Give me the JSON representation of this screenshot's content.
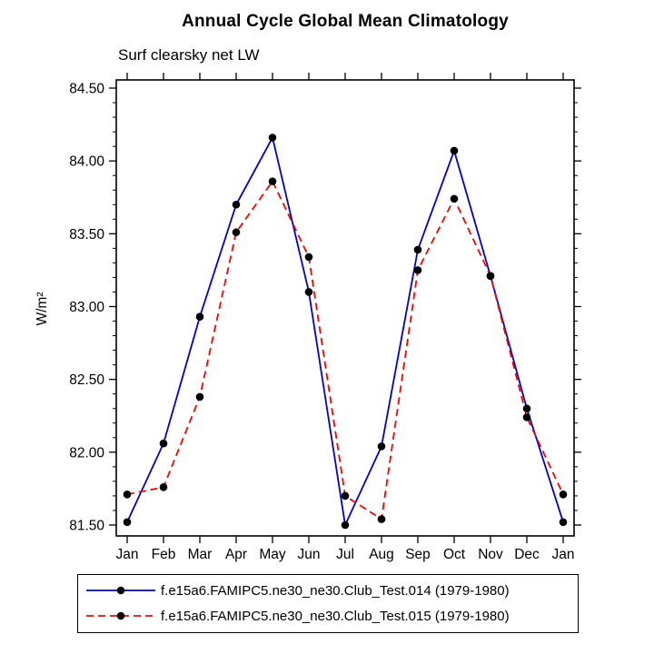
{
  "chart_data": {
    "type": "line",
    "title": "Annual Cycle Global Mean Climatology",
    "subtitle": "Surf clearsky net LW",
    "ylabel": "W/m²",
    "xlabel": "",
    "x": [
      "Jan",
      "Feb",
      "Mar",
      "Apr",
      "May",
      "Jun",
      "Jul",
      "Aug",
      "Sep",
      "Oct",
      "Nov",
      "Dec",
      "Jan"
    ],
    "ylim": [
      81.5,
      84.5
    ],
    "yticks": [
      81.5,
      82.0,
      82.5,
      83.0,
      83.5,
      84.0,
      84.5
    ],
    "ytick_labels": [
      "81.50",
      "82.00",
      "82.50",
      "83.00",
      "83.50",
      "84.00",
      "84.50"
    ],
    "ytick_minor_interval": 0.1,
    "grid": false,
    "legend_position": "bottom",
    "frame_color": "#000000",
    "marker_color": "#000000",
    "series": [
      {
        "name": "f.e15a6.FAMIPC5.ne30_ne30.Club_Test.014 (1979-1980)",
        "color": "#0000dd",
        "style": "solid",
        "values": [
          81.52,
          82.06,
          82.93,
          83.7,
          84.16,
          83.1,
          81.5,
          82.04,
          83.39,
          84.07,
          83.21,
          82.3,
          81.52
        ]
      },
      {
        "name": "f.e15a6.FAMIPC5.ne30_ne30.Club_Test.015 (1979-1980)",
        "color": "#ff0000",
        "style": "dashed",
        "values": [
          81.71,
          81.76,
          82.38,
          83.51,
          83.86,
          83.34,
          81.7,
          81.54,
          83.25,
          83.74,
          83.21,
          82.24,
          81.71
        ]
      }
    ]
  }
}
